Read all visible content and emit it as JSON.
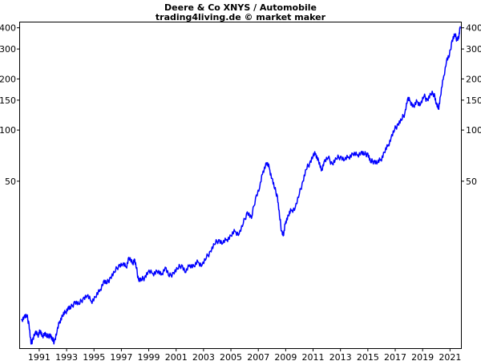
{
  "chart_data": {
    "type": "line",
    "title": "Deere & Co XNYS / Automobile",
    "subtitle": "trading4living.de © market maker",
    "xlabel": "",
    "ylabel": "",
    "y_scale": "log",
    "xlim": [
      1989.6,
      2021.8
    ],
    "ylim": [
      5.2,
      430
    ],
    "x_ticks": [
      1991,
      1993,
      1995,
      1997,
      1999,
      2001,
      2003,
      2005,
      2007,
      2009,
      2011,
      2013,
      2015,
      2017,
      2019,
      2021
    ],
    "x_tick_labels": [
      "1991",
      "1993",
      "1995",
      "1997",
      "1999",
      "2001",
      "2003",
      "2005",
      "2007",
      "2009",
      "2011",
      "2013",
      "2015",
      "2017",
      "2019",
      "2021"
    ],
    "y_ticks": [
      50,
      100,
      150,
      200,
      300,
      400
    ],
    "y_tick_labels": [
      "50",
      "100",
      "150",
      "200",
      "300",
      "400"
    ],
    "grid": false,
    "series": [
      {
        "color": "#0000ff",
        "points": [
          [
            1989.7,
            7.6
          ],
          [
            1989.9,
            8.0
          ],
          [
            1990.1,
            8.0
          ],
          [
            1990.25,
            7.3
          ],
          [
            1990.4,
            5.5
          ],
          [
            1990.5,
            5.8
          ],
          [
            1990.7,
            6.4
          ],
          [
            1990.9,
            6.2
          ],
          [
            1991.05,
            6.6
          ],
          [
            1991.2,
            6.1
          ],
          [
            1991.4,
            6.4
          ],
          [
            1991.6,
            6.0
          ],
          [
            1991.8,
            6.3
          ],
          [
            1991.95,
            5.8
          ],
          [
            1992.1,
            5.7
          ],
          [
            1992.3,
            6.5
          ],
          [
            1992.5,
            7.5
          ],
          [
            1992.7,
            8.1
          ],
          [
            1992.9,
            8.4
          ],
          [
            1993.1,
            9.0
          ],
          [
            1993.3,
            8.9
          ],
          [
            1993.6,
            9.8
          ],
          [
            1993.9,
            9.4
          ],
          [
            1994.2,
            10.2
          ],
          [
            1994.5,
            10.6
          ],
          [
            1994.8,
            9.8
          ],
          [
            1995.1,
            10.4
          ],
          [
            1995.4,
            11.2
          ],
          [
            1995.7,
            12.9
          ],
          [
            1995.95,
            12.5
          ],
          [
            1996.2,
            13.6
          ],
          [
            1996.5,
            14.5
          ],
          [
            1996.8,
            16.0
          ],
          [
            1997.1,
            16.2
          ],
          [
            1997.35,
            15.6
          ],
          [
            1997.55,
            17.8
          ],
          [
            1997.8,
            16.3
          ],
          [
            1997.95,
            17.4
          ],
          [
            1998.1,
            15.3
          ],
          [
            1998.25,
            13.3
          ],
          [
            1998.45,
            13.0
          ],
          [
            1998.7,
            13.6
          ],
          [
            1998.95,
            14.6
          ],
          [
            1999.3,
            14.3
          ],
          [
            1999.6,
            14.8
          ],
          [
            1999.9,
            14.0
          ],
          [
            2000.2,
            15.6
          ],
          [
            2000.5,
            13.7
          ],
          [
            2000.8,
            14.5
          ],
          [
            2001.1,
            15.2
          ],
          [
            2001.4,
            16.1
          ],
          [
            2001.7,
            14.5
          ],
          [
            2002.0,
            16.1
          ],
          [
            2002.3,
            15.8
          ],
          [
            2002.6,
            16.7
          ],
          [
            2002.9,
            16.1
          ],
          [
            2003.2,
            17.6
          ],
          [
            2003.5,
            19.4
          ],
          [
            2003.8,
            21.2
          ],
          [
            2004.1,
            22.6
          ],
          [
            2004.4,
            21.5
          ],
          [
            2004.7,
            22.7
          ],
          [
            2005.0,
            23.9
          ],
          [
            2005.3,
            25.3
          ],
          [
            2005.6,
            24.5
          ],
          [
            2005.9,
            28.1
          ],
          [
            2006.2,
            33.0
          ],
          [
            2006.5,
            30.2
          ],
          [
            2006.8,
            40.0
          ],
          [
            2007.1,
            45.8
          ],
          [
            2007.35,
            57.3
          ],
          [
            2007.6,
            64.2
          ],
          [
            2007.8,
            59.8
          ],
          [
            2008.0,
            52.0
          ],
          [
            2008.2,
            45.0
          ],
          [
            2008.4,
            40.8
          ],
          [
            2008.55,
            31.0
          ],
          [
            2008.7,
            25.5
          ],
          [
            2008.85,
            24.0
          ],
          [
            2009.0,
            29.0
          ],
          [
            2009.2,
            31.5
          ],
          [
            2009.4,
            33.5
          ],
          [
            2009.7,
            35.0
          ],
          [
            2010.0,
            42.0
          ],
          [
            2010.25,
            50.0
          ],
          [
            2010.5,
            58.5
          ],
          [
            2010.75,
            64.0
          ],
          [
            2011.0,
            70.5
          ],
          [
            2011.2,
            72.5
          ],
          [
            2011.4,
            66.0
          ],
          [
            2011.6,
            57.5
          ],
          [
            2011.8,
            65.0
          ],
          [
            2012.1,
            68.5
          ],
          [
            2012.4,
            63.5
          ],
          [
            2012.7,
            67.5
          ],
          [
            2013.0,
            70.0
          ],
          [
            2013.3,
            66.5
          ],
          [
            2013.6,
            69.5
          ],
          [
            2013.9,
            72.5
          ],
          [
            2014.2,
            71.0
          ],
          [
            2014.5,
            74.0
          ],
          [
            2014.75,
            71.5
          ],
          [
            2015.0,
            73.0
          ],
          [
            2015.2,
            64.5
          ],
          [
            2015.45,
            66.0
          ],
          [
            2015.7,
            64.0
          ],
          [
            2015.95,
            67.0
          ],
          [
            2016.2,
            74.0
          ],
          [
            2016.45,
            80.0
          ],
          [
            2016.7,
            90.5
          ],
          [
            2016.95,
            100.0
          ],
          [
            2017.2,
            109.0
          ],
          [
            2017.45,
            114.0
          ],
          [
            2017.7,
            126.0
          ],
          [
            2017.9,
            152.0
          ],
          [
            2018.1,
            148.0
          ],
          [
            2018.35,
            137.0
          ],
          [
            2018.6,
            147.0
          ],
          [
            2018.85,
            142.0
          ],
          [
            2019.1,
            158.0
          ],
          [
            2019.35,
            151.0
          ],
          [
            2019.6,
            162.0
          ],
          [
            2019.85,
            164.0
          ],
          [
            2020.0,
            142.0
          ],
          [
            2020.15,
            133.0
          ],
          [
            2020.3,
            158.0
          ],
          [
            2020.5,
            198.0
          ],
          [
            2020.75,
            258.0
          ],
          [
            2020.95,
            272.0
          ],
          [
            2021.15,
            338.0
          ],
          [
            2021.35,
            362.0
          ],
          [
            2021.5,
            344.0
          ],
          [
            2021.65,
            352.0
          ],
          [
            2021.75,
            408.0
          ]
        ]
      }
    ]
  }
}
